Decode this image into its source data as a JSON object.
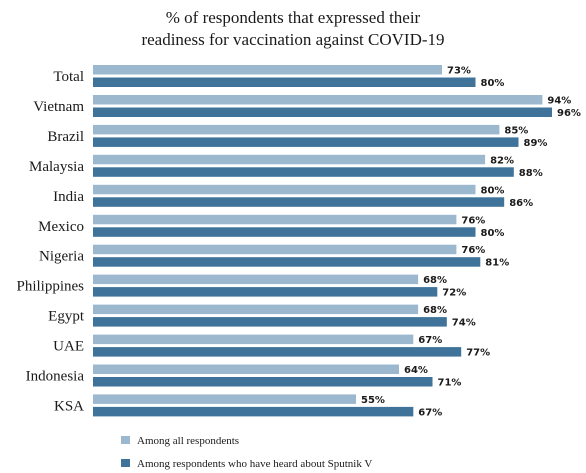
{
  "chart_data": {
    "type": "bar",
    "orientation": "horizontal",
    "title_lines": [
      "% of respondents that expressed their",
      "readiness for vaccination  against  COVID-19"
    ],
    "categories": [
      "Total",
      "Vietnam",
      "Brazil",
      "Malaysia",
      "India",
      "Mexico",
      "Nigeria",
      "Philippines",
      "Egypt",
      "UAE",
      "Indonesia",
      "KSA"
    ],
    "series": [
      {
        "name": "Among all respondents",
        "color": "#9cb8cf",
        "values": [
          73,
          94,
          85,
          82,
          80,
          76,
          76,
          68,
          68,
          67,
          64,
          55
        ],
        "labels": [
          "73%",
          "94%",
          "85%",
          "82%",
          "80%",
          "76%",
          "76%",
          "68%",
          "68%",
          "67%",
          "64%",
          "55%"
        ]
      },
      {
        "name": "Among respondents who have heard about Sputnik V",
        "color": "#3f7399",
        "values": [
          80,
          96,
          89,
          88,
          86,
          80,
          81,
          72,
          74,
          77,
          71,
          67
        ],
        "labels": [
          "80%",
          "96%",
          "89%",
          "88%",
          "86%",
          "80%",
          "81%",
          "72%",
          "74%",
          "77%",
          "71%",
          "67%"
        ]
      }
    ],
    "xlim": [
      0,
      96
    ],
    "grid": false,
    "legend_position": "bottom-left"
  }
}
